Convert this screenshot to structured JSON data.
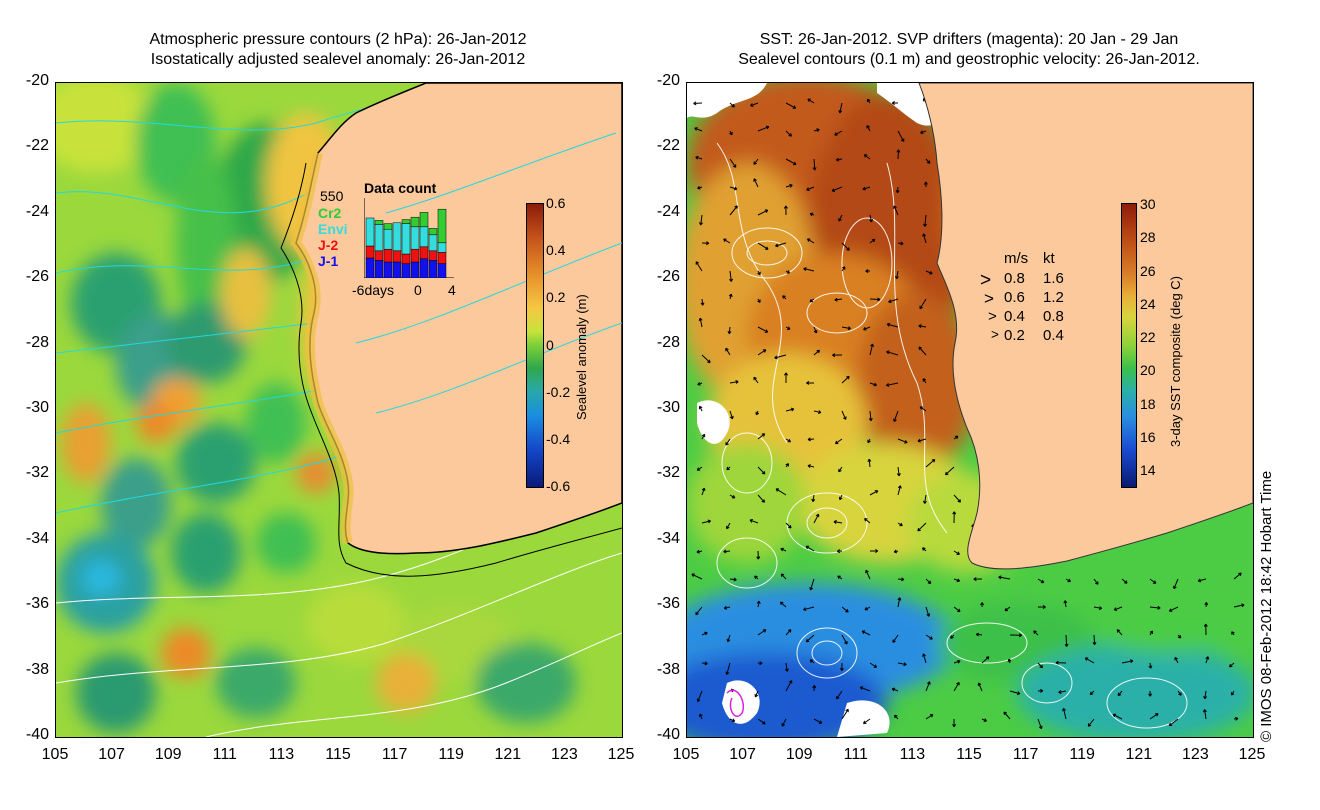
{
  "left_panel": {
    "title_line1": "Atmospheric pressure contours (2 hPa): 26-Jan-2012",
    "title_line2": "Isostatically adjusted sealevel anomaly: 26-Jan-2012",
    "colorbar": {
      "title": "Sealevel anomaly (m)",
      "ticks": [
        "0.6",
        "0.4",
        "0.2",
        "0",
        "-0.2",
        "-0.4",
        "-0.6"
      ]
    },
    "data_count": {
      "title": "Data count",
      "max_label": "550",
      "legend": [
        {
          "label": "Cr2",
          "color": "#33cc33"
        },
        {
          "label": "Envi",
          "color": "#33dddd"
        },
        {
          "label": "J-2",
          "color": "#ee1111"
        },
        {
          "label": "J-1",
          "color": "#1111ee"
        }
      ],
      "x_ticks": [
        "-6days",
        "0",
        "4"
      ],
      "bars": [
        {
          "j1": 0.25,
          "j2": 0.15,
          "envi": 0.35,
          "cr2": 0.0
        },
        {
          "j1": 0.22,
          "j2": 0.12,
          "envi": 0.33,
          "cr2": 0.05
        },
        {
          "j1": 0.2,
          "j2": 0.16,
          "envi": 0.25,
          "cr2": 0.07
        },
        {
          "j1": 0.2,
          "j2": 0.14,
          "envi": 0.35,
          "cr2": 0.0
        },
        {
          "j1": 0.18,
          "j2": 0.12,
          "envi": 0.38,
          "cr2": 0.05
        },
        {
          "j1": 0.2,
          "j2": 0.16,
          "envi": 0.28,
          "cr2": 0.12
        },
        {
          "j1": 0.24,
          "j2": 0.15,
          "envi": 0.25,
          "cr2": 0.18
        },
        {
          "j1": 0.22,
          "j2": 0.12,
          "envi": 0.2,
          "cr2": 0.08
        },
        {
          "j1": 0.18,
          "j2": 0.14,
          "envi": 0.12,
          "cr2": 0.42
        }
      ]
    }
  },
  "right_panel": {
    "title_line1": "SST: 26-Jan-2012. SVP drifters (magenta): 20 Jan - 29 Jan",
    "title_line2": "Sealevel contours (0.1 m) and geostrophic velocity: 26-Jan-2012.",
    "colorbar": {
      "title": "3-day SST composite (deg C)",
      "ticks": [
        "30",
        "28",
        "26",
        "24",
        "22",
        "20",
        "18",
        "16",
        "14"
      ]
    },
    "speed_legend": {
      "header_ms": "m/s",
      "header_kt": "kt",
      "rows": [
        {
          "ms": "0.8",
          "kt": "1.6"
        },
        {
          "ms": "0.6",
          "kt": "1.2"
        },
        {
          "ms": "0.4",
          "kt": "0.8"
        },
        {
          "ms": "0.2",
          "kt": "0.4"
        }
      ]
    }
  },
  "axes": {
    "y_ticks": [
      "-20",
      "-22",
      "-24",
      "-26",
      "-28",
      "-30",
      "-32",
      "-34",
      "-36",
      "-38",
      "-40"
    ],
    "x_ticks": [
      "105",
      "107",
      "109",
      "111",
      "113",
      "115",
      "117",
      "119",
      "121",
      "123",
      "125"
    ]
  },
  "credit": "© IMOS 08-Feb-2012 18:42 Hobart Time",
  "colors": {
    "land": "#fbc99c",
    "contour_cyan": "#22d8e0",
    "contour_white": "#ffffff",
    "drifter_magenta": "#dd22dd"
  }
}
